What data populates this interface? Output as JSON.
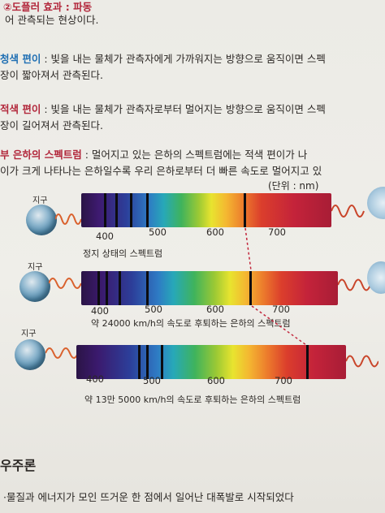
{
  "text_lines": {
    "l1": "②도플러 효과 : 파동",
    "l2": "어 관측되는 현상이다.",
    "l3a": "청색 편이",
    "l3b": " : 빛을 내는 물체가 관측자에게 가까워지는 방향으로 움직이면 스펙",
    "l4": "장이 짧아져서 관측된다.",
    "l5a": "적색 편이",
    "l5b": " : 빛을 내는 물체가 관측자로부터 멀어지는 방향으로 움직이면 스펙",
    "l6a": "적색 편이",
    "l6b": " : 빛을 내는 물체가 관측자로부터 멀어지는 방향으로 움직이면 스펙",
    "l7": "장이 길어져서 관측된다.",
    "l8a": "부 은하의 스펙트럼",
    "l8b": " : 멀어지고 있는 은하의 스펙트럼에는 적색 편이가 나",
    "l9": "이가 크게 나타나는 은하일수록 우리 은하로부터 더 빠른 속도로 멀어지고 있",
    "unit": "(단위 : nm)",
    "section": "우주론",
    "bottom": "·물질과 에너지가 모인 뜨거운 한 점에서 일어난 대폭발로 시작되었다"
  },
  "earth_label": "지구",
  "spectra": [
    {
      "caption": "정지 상태의 스펙트럼",
      "ticks": [
        "400",
        "500",
        "600",
        "700"
      ]
    },
    {
      "caption": "약 24000 km/h의 속도로 후퇴하는 은하의 스펙트럼",
      "ticks": [
        "400",
        "500",
        "600",
        "700"
      ]
    },
    {
      "caption": "약 13만  5000 km/h의 속도로 후퇴하는 은하의 스펙트럼",
      "ticks": [
        "400",
        "500",
        "600",
        "700"
      ]
    }
  ]
}
